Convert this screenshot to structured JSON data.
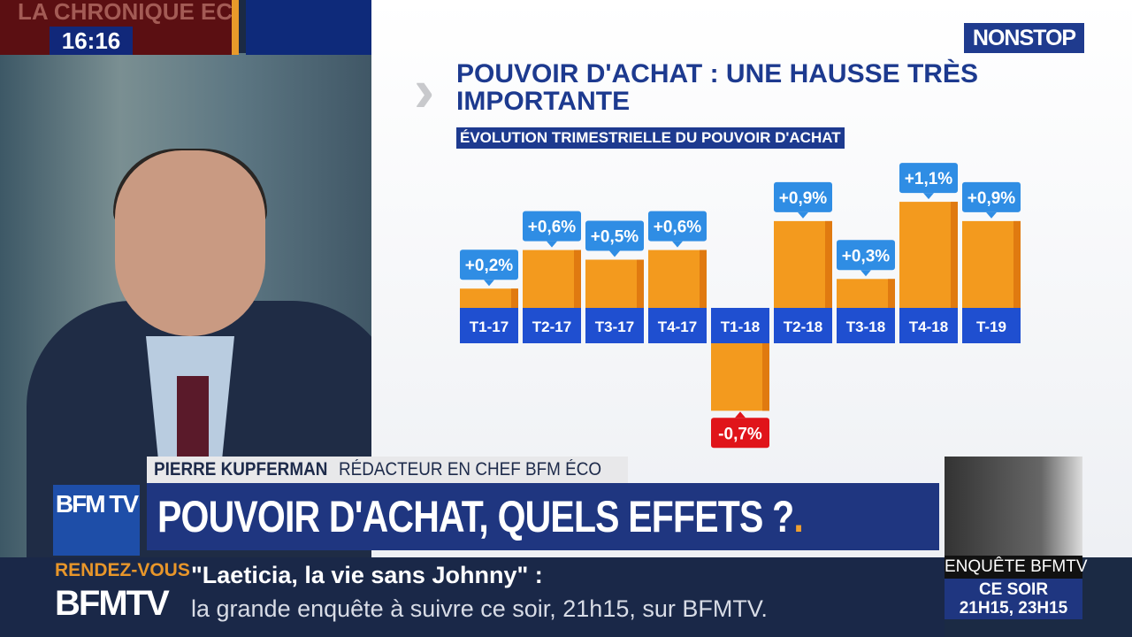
{
  "top_bar": {
    "show_title": "LA CHRONIQUE ECO",
    "clock": "16:16"
  },
  "channel_badge": "NONSTOP",
  "chart_data": {
    "type": "bar",
    "title": "POUVOIR D'ACHAT : UNE HAUSSE TRÈS IMPORTANTE",
    "subtitle": "ÉVOLUTION TRIMESTRIELLE DU POUVOIR D'ACHAT",
    "categories": [
      "T1-17",
      "T2-17",
      "T3-17",
      "T4-17",
      "T1-18",
      "T2-18",
      "T3-18",
      "T4-18",
      "T-19"
    ],
    "values": [
      0.2,
      0.6,
      0.5,
      0.6,
      -0.7,
      0.9,
      0.3,
      1.1,
      0.9
    ],
    "labels": [
      "+0,2%",
      "+0,6%",
      "+0,5%",
      "+0,6%",
      "-0,7%",
      "+0,9%",
      "+0,3%",
      "+1,1%",
      "+0,9%"
    ],
    "unit": "%",
    "colors": {
      "bar": "#f39a1e",
      "category": "#1f4fd0",
      "label_pos": "#2f8de4",
      "label_neg": "#e0141a"
    }
  },
  "lower_third": {
    "name": "PIERRE KUPFERMAN",
    "role": "RÉDACTEUR EN CHEF BFM ÉCO",
    "headline": "POUVOIR D'ACHAT, QUELS EFFETS ?",
    "logo": "BFM TV"
  },
  "ticker": {
    "kicker": "RENDEZ-VOUS",
    "brand": "BFMTV",
    "line1": "\"Laeticia, la vie sans Johnny\" :",
    "line2": "la grande enquête à suivre ce soir, 21h15, sur BFMTV."
  },
  "promo": {
    "title": "ENQUÊTE BFMTV",
    "when": "CE SOIR",
    "times": "21H15, 23H15"
  }
}
